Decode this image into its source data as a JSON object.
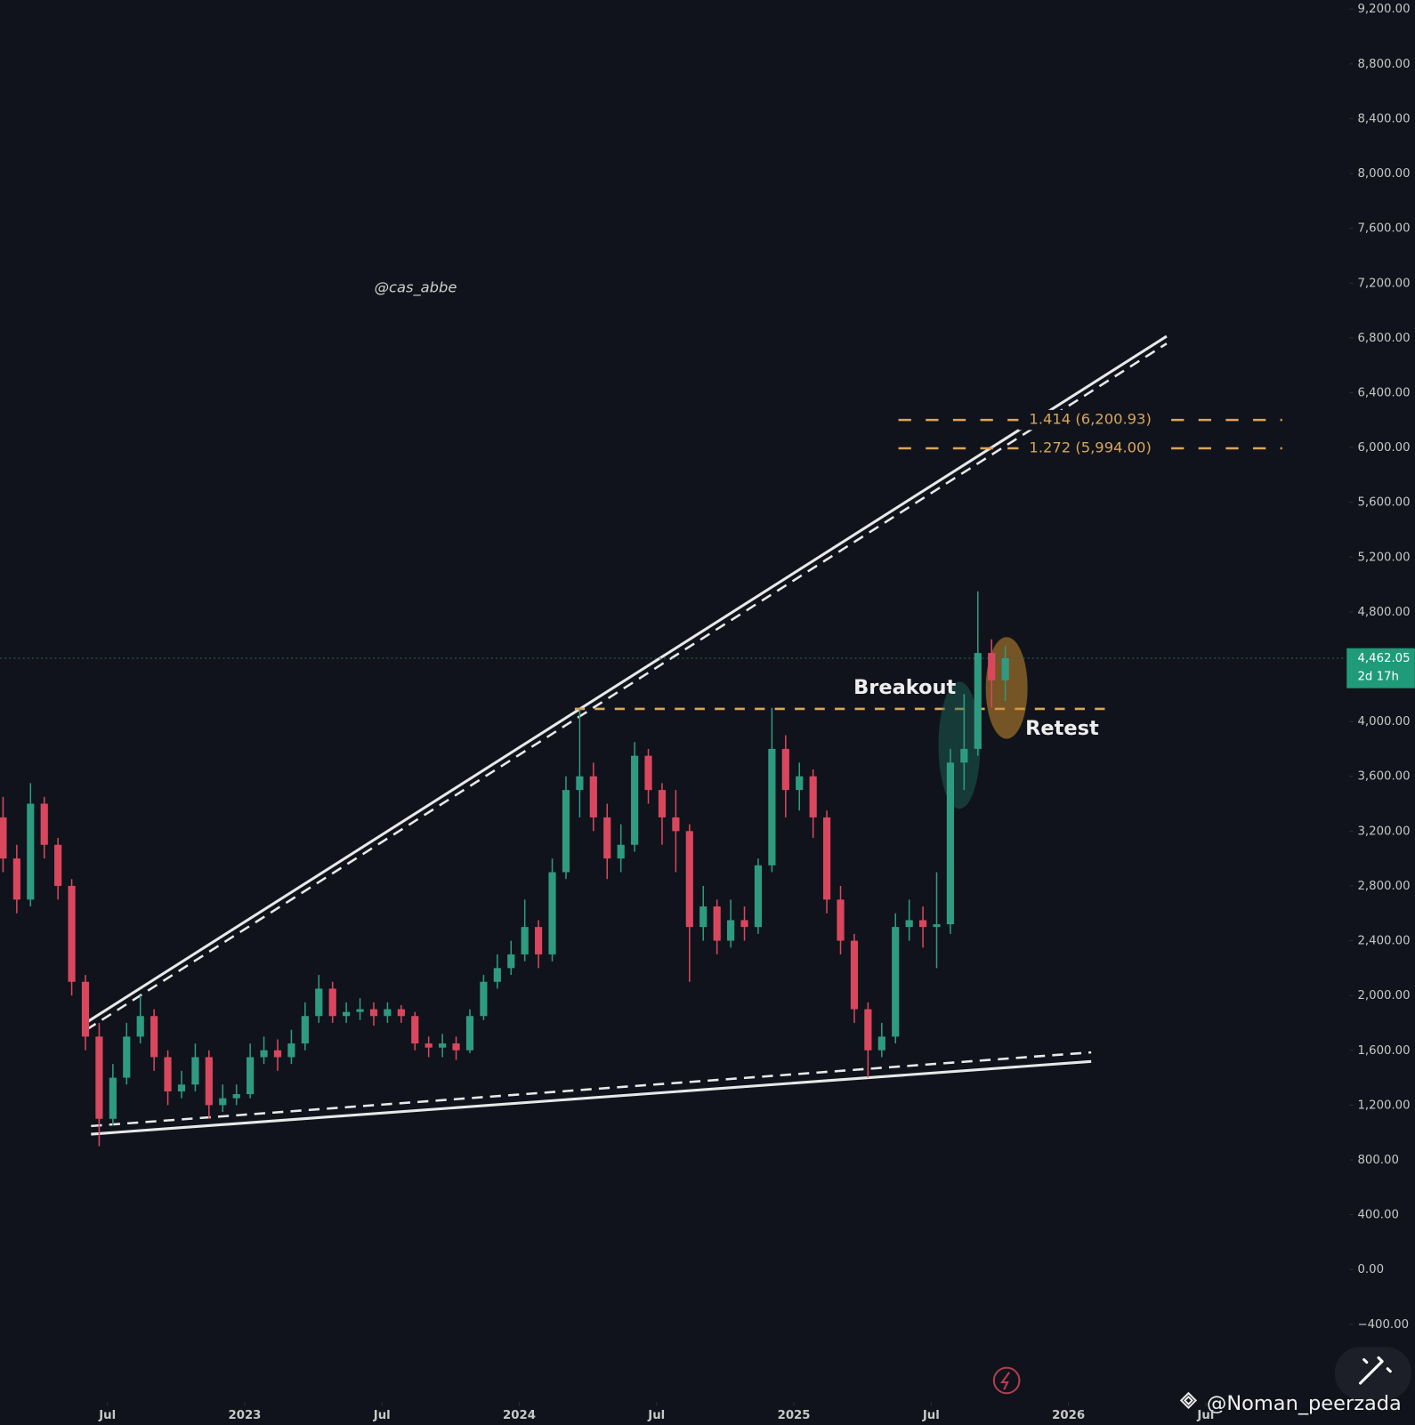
{
  "chart_data": {
    "type": "candlestick",
    "x": [
      2022.12,
      2022.17,
      2022.22,
      2022.27,
      2022.32,
      2022.37,
      2022.42,
      2022.47,
      2022.52,
      2022.57,
      2022.62,
      2022.67,
      2022.72,
      2022.77,
      2022.82,
      2022.87,
      2022.92,
      2022.97,
      2023.02,
      2023.07,
      2023.12,
      2023.17,
      2023.22,
      2023.27,
      2023.32,
      2023.37,
      2023.42,
      2023.47,
      2023.52,
      2023.57,
      2023.62,
      2023.67,
      2023.72,
      2023.77,
      2023.82,
      2023.87,
      2023.92,
      2023.97,
      2024.02,
      2024.07,
      2024.12,
      2024.17,
      2024.22,
      2024.27,
      2024.32,
      2024.37,
      2024.42,
      2024.47,
      2024.52,
      2024.57,
      2024.62,
      2024.67,
      2024.72,
      2024.77,
      2024.82,
      2024.87,
      2024.92,
      2024.97,
      2025.02,
      2025.07,
      2025.12,
      2025.17,
      2025.22,
      2025.27,
      2025.32,
      2025.37,
      2025.42,
      2025.47,
      2025.52,
      2025.57,
      2025.62,
      2025.67,
      2025.72,
      2025.77
    ],
    "open": [
      3300,
      3000,
      2700,
      3400,
      3100,
      2800,
      2100,
      1700,
      1100,
      1400,
      1700,
      1850,
      1550,
      1300,
      1350,
      1550,
      1200,
      1250,
      1280,
      1550,
      1600,
      1550,
      1650,
      1850,
      2050,
      1850,
      1880,
      1900,
      1850,
      1900,
      1850,
      1650,
      1620,
      1650,
      1600,
      1850,
      2100,
      2200,
      2300,
      2500,
      2300,
      2900,
      3500,
      3600,
      3300,
      3000,
      3100,
      3750,
      3500,
      3300,
      3200,
      2500,
      2650,
      2400,
      2550,
      2500,
      2950,
      3800,
      3500,
      3600,
      3300,
      2700,
      2400,
      1900,
      1600,
      1700,
      2500,
      2550,
      2500,
      2520,
      3700,
      3800,
      4500,
      4300
    ],
    "high": [
      3450,
      3100,
      3550,
      3450,
      3150,
      2850,
      2150,
      1800,
      1500,
      1800,
      2000,
      1900,
      1600,
      1450,
      1650,
      1600,
      1350,
      1350,
      1650,
      1700,
      1680,
      1750,
      1950,
      2150,
      2100,
      1950,
      1980,
      1950,
      1950,
      1930,
      1880,
      1700,
      1720,
      1700,
      1900,
      2150,
      2300,
      2400,
      2700,
      2550,
      3000,
      3600,
      4090,
      3700,
      3400,
      3250,
      3850,
      3800,
      3550,
      3500,
      3250,
      2800,
      2700,
      2700,
      2650,
      3000,
      4100,
      3900,
      3700,
      3650,
      3350,
      2800,
      2450,
      1950,
      1800,
      2600,
      2700,
      2650,
      2900,
      3800,
      4200,
      4950,
      4600,
      4550
    ],
    "low": [
      2900,
      2600,
      2650,
      3000,
      2700,
      2000,
      1600,
      900,
      1050,
      1350,
      1650,
      1450,
      1200,
      1250,
      1300,
      1100,
      1150,
      1200,
      1250,
      1500,
      1450,
      1500,
      1600,
      1800,
      1800,
      1800,
      1820,
      1780,
      1800,
      1800,
      1600,
      1550,
      1550,
      1530,
      1580,
      1820,
      2050,
      2150,
      2250,
      2200,
      2250,
      2850,
      3300,
      3200,
      2850,
      2900,
      3050,
      3400,
      3100,
      2900,
      2100,
      2400,
      2300,
      2350,
      2400,
      2450,
      2900,
      3300,
      3350,
      3150,
      2600,
      2300,
      1800,
      1400,
      1550,
      1650,
      2400,
      2350,
      2200,
      2450,
      3500,
      3750,
      4100,
      4150
    ],
    "close": [
      3000,
      2700,
      3400,
      3100,
      2800,
      2100,
      1700,
      1100,
      1400,
      1700,
      1850,
      1550,
      1300,
      1350,
      1550,
      1200,
      1250,
      1280,
      1550,
      1600,
      1550,
      1650,
      1850,
      2050,
      1850,
      1880,
      1900,
      1850,
      1900,
      1850,
      1650,
      1620,
      1650,
      1600,
      1850,
      2100,
      2200,
      2300,
      2500,
      2300,
      2900,
      3500,
      3600,
      3300,
      3000,
      3100,
      3750,
      3500,
      3300,
      3200,
      2500,
      2650,
      2400,
      2550,
      2500,
      2950,
      3800,
      3500,
      3600,
      3300,
      2700,
      2400,
      1900,
      1600,
      1700,
      2500,
      2550,
      2500,
      2520,
      3700,
      3800,
      4500,
      4300,
      4462.05
    ],
    "colors": {
      "up": "#2e9b80",
      "down": "#d9475e"
    },
    "xlim": [
      2022.1,
      2027
    ],
    "xticks": [
      {
        "value": 2022.5,
        "label": "Jul"
      },
      2023,
      {
        "value": 2023.5,
        "label": "Jul"
      },
      2024,
      {
        "value": 2024.5,
        "label": "Jul"
      },
      2025,
      {
        "value": 2025.5,
        "label": "Jul"
      },
      2026,
      {
        "value": 2026.5,
        "label": "Jul"
      }
    ],
    "ylim": [
      -800,
      9200
    ],
    "yticks": [
      {
        "value": 9200,
        "label": "9,200.00"
      },
      {
        "value": 8800,
        "label": "8,800.00"
      },
      {
        "value": 8400,
        "label": "8,400.00"
      },
      {
        "value": 8000,
        "label": "8,000.00"
      },
      {
        "value": 7600,
        "label": "7,600.00"
      },
      {
        "value": 7200,
        "label": "7,200.00"
      },
      {
        "value": 6800,
        "label": "6,800.00"
      },
      {
        "value": 6400,
        "label": "6,400.00"
      },
      {
        "value": 6000,
        "label": "6,000.00"
      },
      {
        "value": 5600,
        "label": "5,600.00"
      },
      {
        "value": 5200,
        "label": "5,200.00"
      },
      {
        "value": 4800,
        "label": "4,800.00"
      },
      {
        "value": 4000,
        "label": "4,000.00"
      },
      {
        "value": 3600,
        "label": "3,600.00"
      },
      {
        "value": 3200,
        "label": "3,200.00"
      },
      {
        "value": 2800,
        "label": "2,800.00"
      },
      {
        "value": 2400,
        "label": "2,400.00"
      },
      {
        "value": 2000,
        "label": "2,000.00"
      },
      {
        "value": 1600,
        "label": "1,600.00"
      },
      {
        "value": 1200,
        "label": "1,200.00"
      },
      {
        "value": 800,
        "label": "800.00"
      },
      {
        "value": 400,
        "label": "400.00"
      },
      {
        "value": 0,
        "label": "0.00"
      },
      {
        "value": -400,
        "label": "−400.00"
      }
    ],
    "last_price": {
      "value": 4462.05,
      "label": "4,462.05"
    },
    "countdown": "2d 17h",
    "fib_levels": [
      {
        "value": 6200.93,
        "label": "1.414 (6,200.93)"
      },
      {
        "value": 5994.0,
        "label": "1.272 (5,994.00)"
      }
    ],
    "annotations": {
      "breakout": "Breakout",
      "retest": "Retest"
    },
    "watermark": "@cas_abbe",
    "credit": "@Noman_peerzada"
  }
}
